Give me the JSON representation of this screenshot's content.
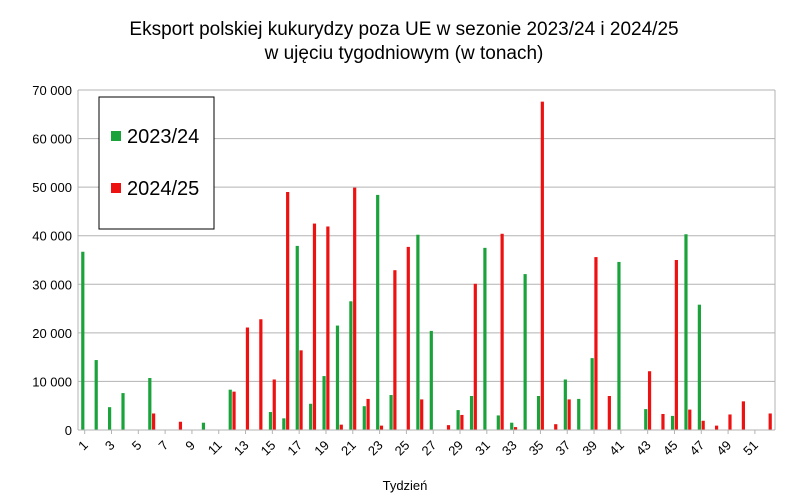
{
  "chart_data": {
    "type": "bar",
    "title": "Eksport polskiej kukurydzy poza UE w sezonie 2023/24 i 2024/25",
    "subtitle": "w ujęciu tygodniowym (w tonach)",
    "xlabel": "Tydzień",
    "ylabel": "",
    "ylim": [
      0,
      70000
    ],
    "yticks": [
      "0",
      "10 000",
      "20 000",
      "30 000",
      "40 000",
      "50 000",
      "60 000",
      "70 000"
    ],
    "grid": true,
    "legend_position": "top-left",
    "categories": [
      "1",
      "2",
      "3",
      "4",
      "5",
      "6",
      "7",
      "8",
      "9",
      "10",
      "11",
      "12",
      "13",
      "14",
      "15",
      "16",
      "17",
      "18",
      "19",
      "20",
      "21",
      "22",
      "23",
      "24",
      "25",
      "26",
      "27",
      "28",
      "29",
      "30",
      "31",
      "32",
      "33",
      "34",
      "35",
      "36",
      "37",
      "38",
      "39",
      "40",
      "41",
      "42",
      "43",
      "44",
      "45",
      "46",
      "47",
      "48",
      "49",
      "50",
      "51",
      "52"
    ],
    "x_tick_labels": [
      "1",
      "3",
      "5",
      "7",
      "9",
      "11",
      "13",
      "15",
      "17",
      "19",
      "21",
      "23",
      "25",
      "27",
      "29",
      "31",
      "33",
      "35",
      "37",
      "39",
      "41",
      "43",
      "45",
      "47",
      "49",
      "51"
    ],
    "series": [
      {
        "name": "2023/24",
        "color": "#1aa33b",
        "values": [
          36700,
          14400,
          4700,
          7600,
          0,
          10700,
          0,
          0,
          0,
          1500,
          0,
          8300,
          0,
          0,
          3700,
          2400,
          37900,
          5400,
          11100,
          21500,
          26500,
          4900,
          48400,
          7200,
          0,
          40200,
          20400,
          0,
          4100,
          7000,
          37500,
          3000,
          1500,
          32100,
          7000,
          0,
          10400,
          6400,
          14800,
          0,
          34600,
          0,
          4300,
          0,
          2900,
          40300,
          25800,
          0,
          0,
          0,
          0,
          0
        ]
      },
      {
        "name": "2024/25",
        "color": "#ee1111",
        "values": [
          0,
          0,
          0,
          0,
          0,
          3400,
          0,
          1700,
          0,
          0,
          0,
          7900,
          21100,
          22800,
          10400,
          49000,
          16400,
          42500,
          41900,
          1100,
          49900,
          6400,
          900,
          32900,
          37700,
          6300,
          0,
          1000,
          3100,
          30100,
          0,
          40400,
          600,
          0,
          67600,
          1200,
          6300,
          0,
          35600,
          7000,
          0,
          0,
          12100,
          3300,
          35000,
          4200,
          1900,
          900,
          3200,
          5900,
          0,
          3400
        ]
      }
    ]
  }
}
